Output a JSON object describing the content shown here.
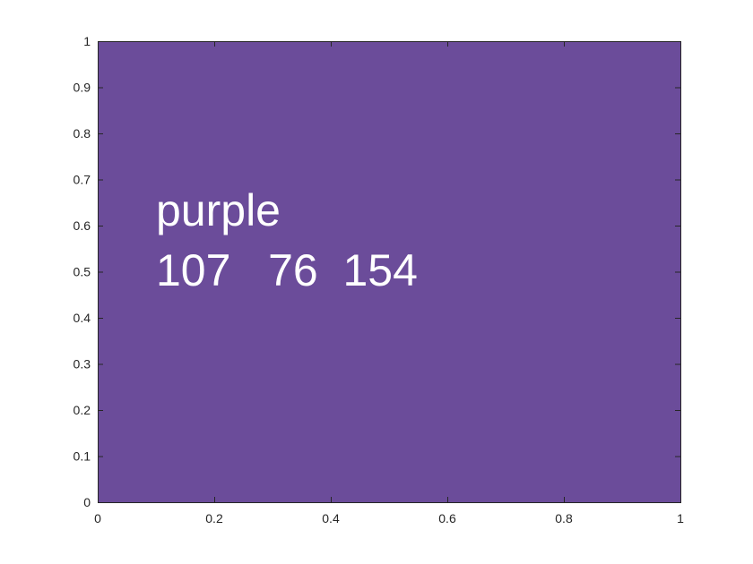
{
  "chart_data": {
    "type": "heatmap",
    "title": "",
    "xlabel": "",
    "ylabel": "",
    "xlim": [
      0,
      1
    ],
    "ylim": [
      0,
      1
    ],
    "x_ticks": [
      "0",
      "0.2",
      "0.4",
      "0.6",
      "0.8",
      "1"
    ],
    "y_ticks": [
      "0",
      "0.1",
      "0.2",
      "0.3",
      "0.4",
      "0.5",
      "0.6",
      "0.7",
      "0.8",
      "0.9",
      "1"
    ],
    "fill": {
      "color_name": "purple",
      "rgb": [
        107,
        76,
        154
      ],
      "hex": "#6B4C9A",
      "x_range": [
        0,
        1
      ],
      "y_range": [
        0,
        1
      ]
    },
    "annotations": [
      {
        "text": "purple",
        "x": 0.1,
        "y": 0.6
      },
      {
        "text": "107   76  154",
        "x": 0.1,
        "y": 0.47
      }
    ],
    "grid": false,
    "legend": "none"
  }
}
